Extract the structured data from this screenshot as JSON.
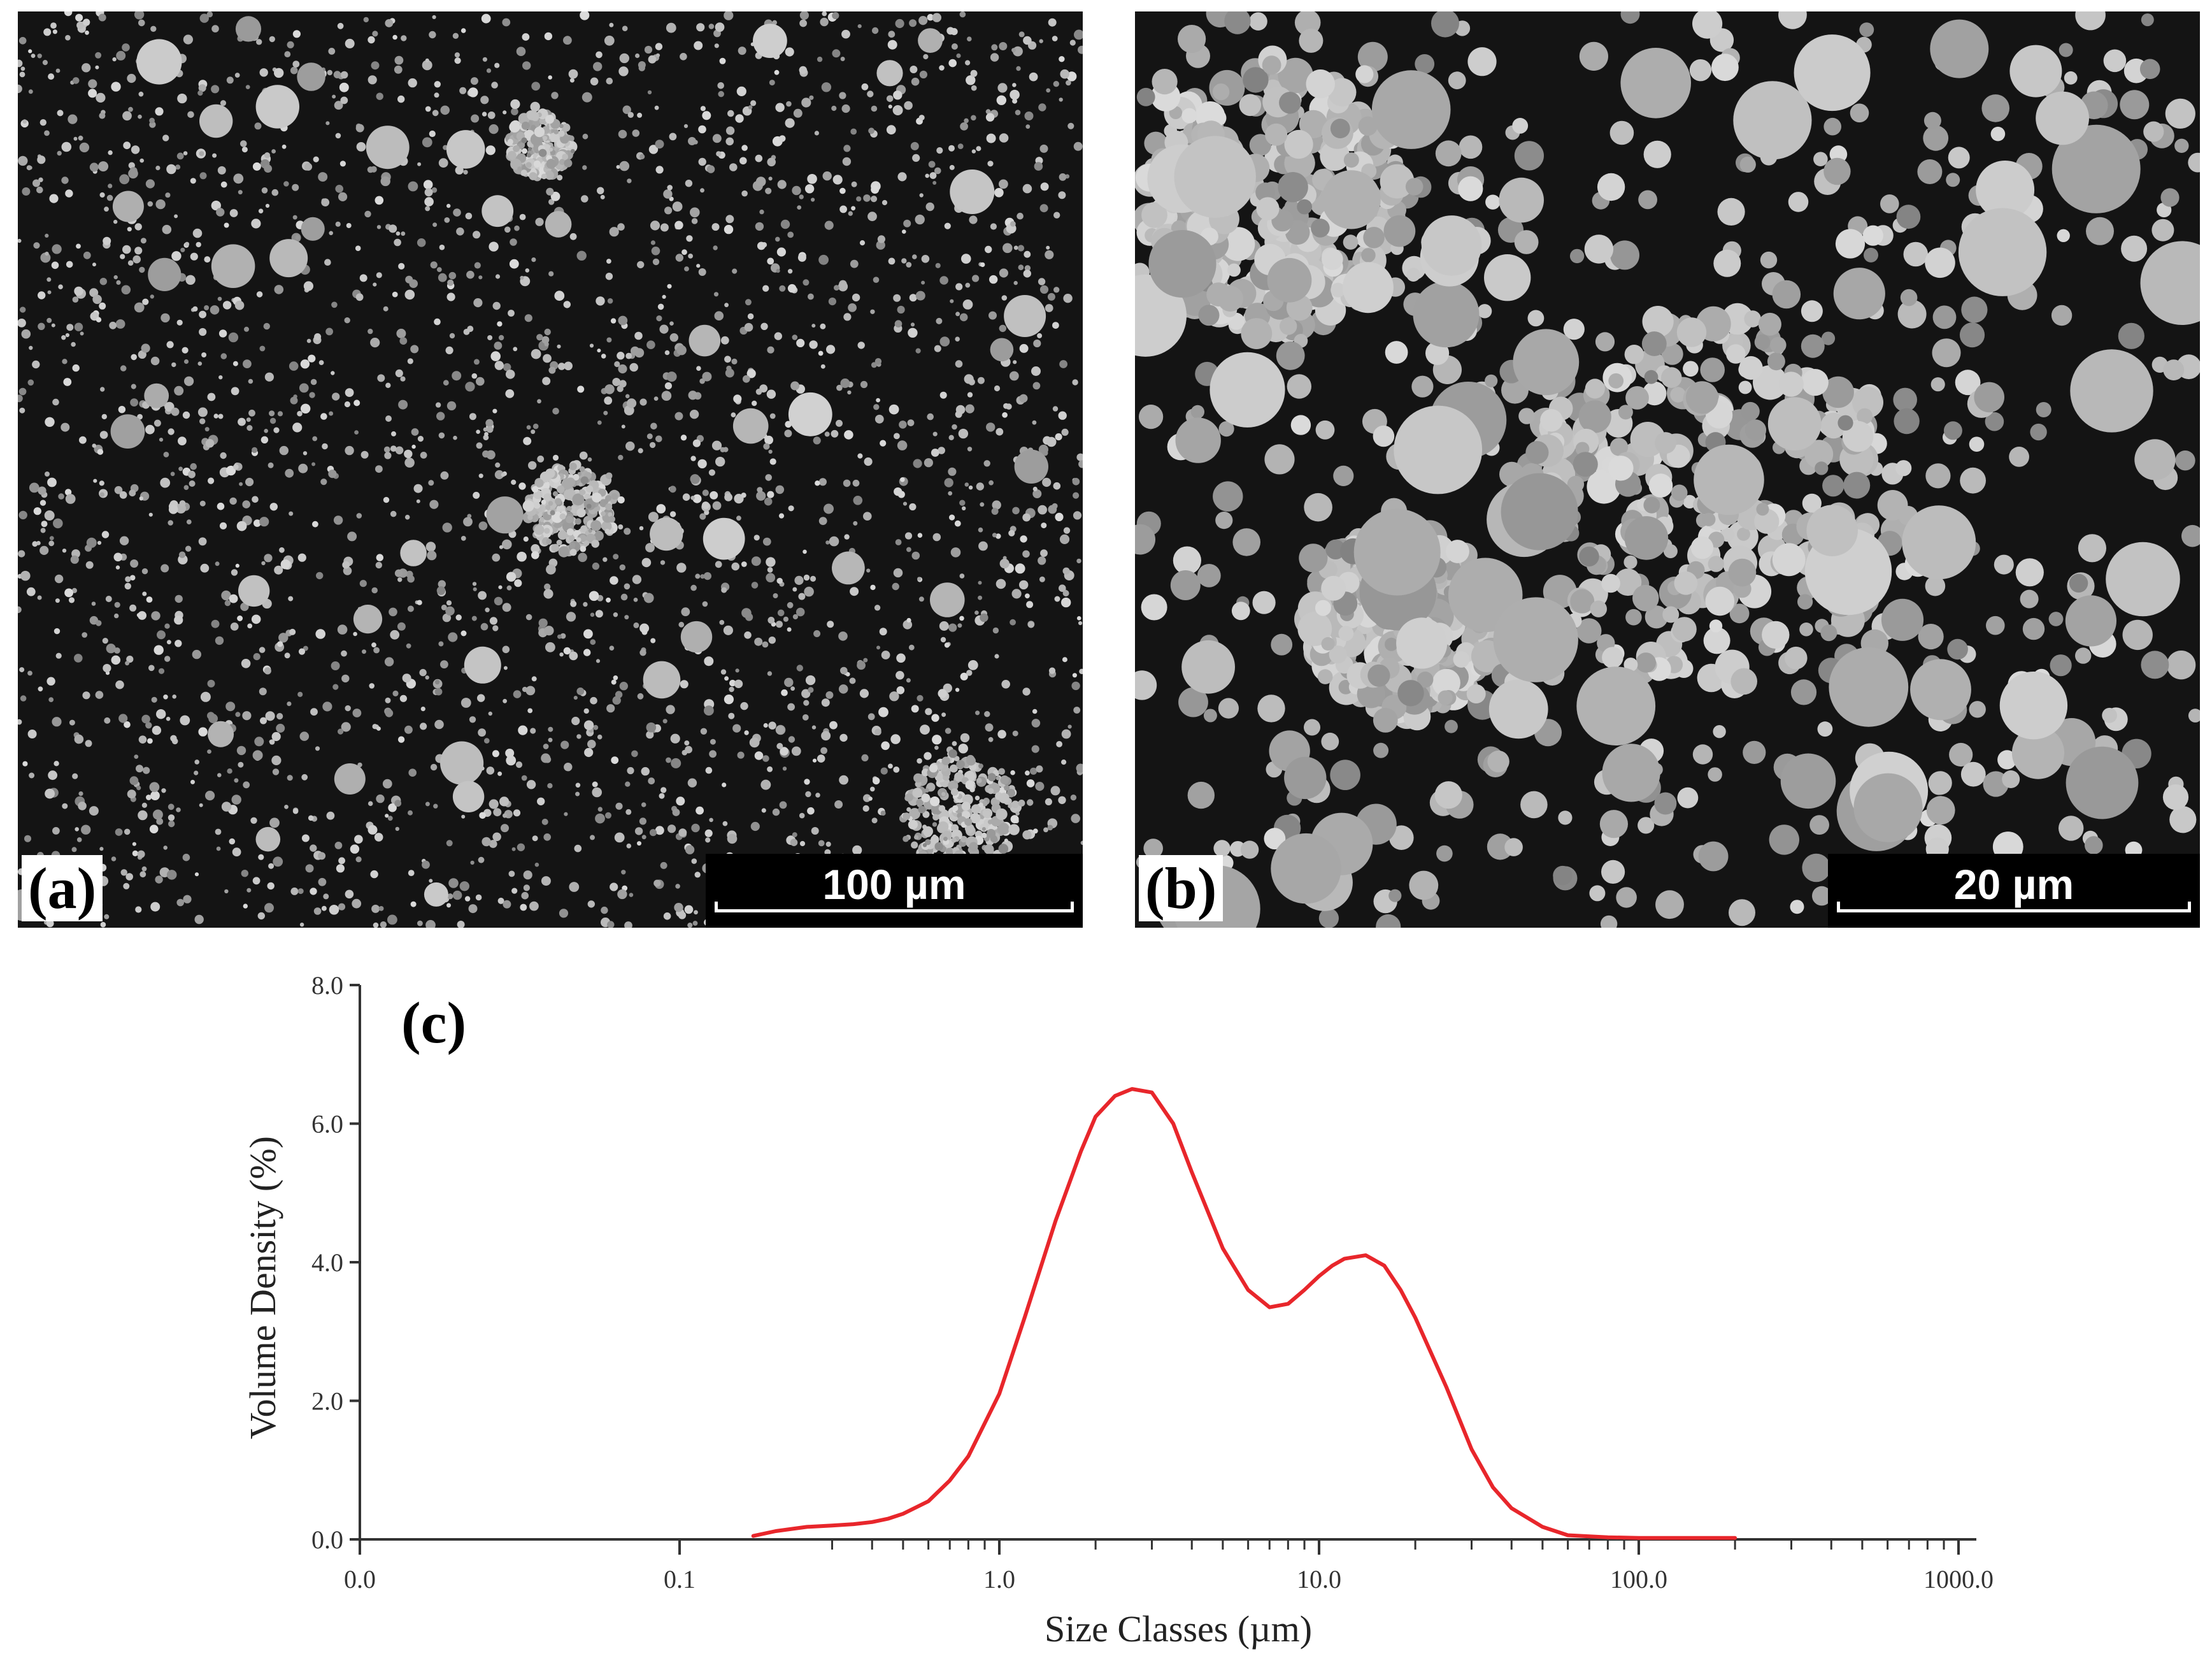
{
  "panels": {
    "a": {
      "letter": "(a)",
      "scale_text": "100 µm"
    },
    "b": {
      "letter": "(b)",
      "scale_text": "20 µm"
    }
  },
  "chart_data": {
    "type": "line",
    "panel_label": "(c)",
    "title": "",
    "xlabel": "Size Classes (µm)",
    "ylabel": "Volume Density (%)",
    "x_scale": "log",
    "xlim": [
      0.01,
      1000
    ],
    "ylim": [
      0,
      8
    ],
    "x_ticks": [
      0.01,
      0.1,
      1,
      10,
      100,
      1000
    ],
    "x_tick_labels": [
      "0.0",
      "0.1",
      "1.0",
      "10.0",
      "100.0",
      "1000.0"
    ],
    "y_ticks": [
      0,
      2,
      4,
      6,
      8
    ],
    "y_tick_labels": [
      "0.0",
      "2.0",
      "4.0",
      "6.0",
      "8.0"
    ],
    "grid": false,
    "series": [
      {
        "color": "#e8262b",
        "x": [
          0.17,
          0.2,
          0.25,
          0.3,
          0.35,
          0.4,
          0.45,
          0.5,
          0.6,
          0.7,
          0.8,
          1.0,
          1.2,
          1.5,
          1.8,
          2.0,
          2.3,
          2.6,
          3.0,
          3.5,
          4.0,
          5.0,
          6.0,
          7.0,
          8.0,
          9.0,
          10.0,
          11.0,
          12.0,
          14.0,
          16.0,
          18.0,
          20.0,
          25.0,
          30.0,
          35.0,
          40.0,
          50.0,
          60.0,
          80.0,
          100.0,
          150.0,
          200.0
        ],
        "y": [
          0.05,
          0.12,
          0.18,
          0.2,
          0.22,
          0.25,
          0.3,
          0.37,
          0.55,
          0.85,
          1.2,
          2.1,
          3.2,
          4.6,
          5.6,
          6.1,
          6.4,
          6.5,
          6.45,
          6.0,
          5.3,
          4.2,
          3.6,
          3.35,
          3.4,
          3.6,
          3.8,
          3.95,
          4.05,
          4.1,
          3.95,
          3.6,
          3.2,
          2.2,
          1.3,
          0.75,
          0.45,
          0.18,
          0.06,
          0.03,
          0.02,
          0.02,
          0.02
        ]
      }
    ]
  }
}
